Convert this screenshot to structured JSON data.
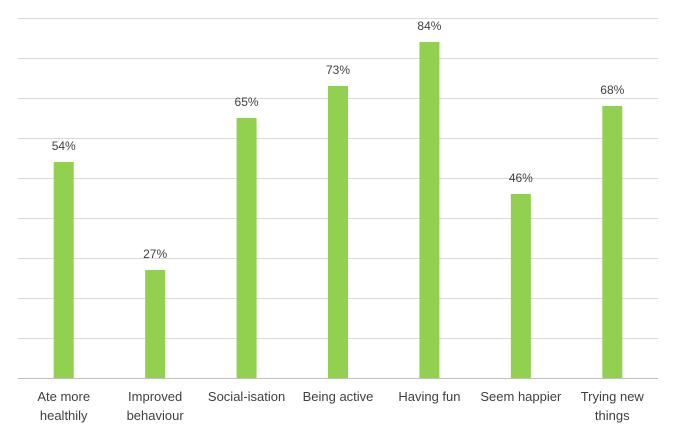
{
  "chart_data": {
    "type": "bar",
    "categories": [
      [
        "Ate more",
        "healthily"
      ],
      [
        "Improved",
        "behaviour"
      ],
      [
        "Social-isation"
      ],
      [
        "Being active"
      ],
      [
        "Having fun"
      ],
      [
        "Seem happier"
      ],
      [
        "Trying new",
        "things"
      ]
    ],
    "values": [
      54,
      27,
      65,
      73,
      84,
      46,
      68
    ],
    "data_labels": [
      "54%",
      "27%",
      "65%",
      "73%",
      "84%",
      "46%",
      "68%"
    ],
    "ylim": [
      0,
      90
    ],
    "ytick_step": 10,
    "grid": true,
    "bar_color": "#92d050",
    "grid_color": "#d9d9d9",
    "legend": "none"
  }
}
